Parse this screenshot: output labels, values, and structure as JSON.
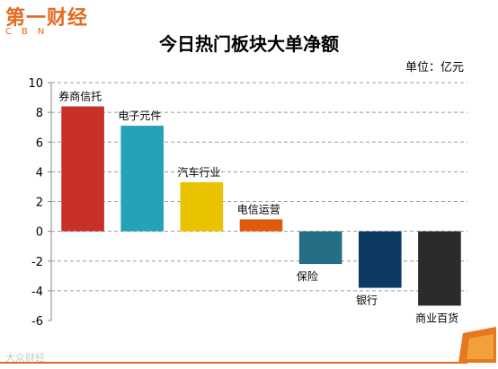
{
  "brand": {
    "logo_cn": "第一财经",
    "logo_en": "CBN",
    "watermark": "大众财经"
  },
  "colors": {
    "grid": "#9a9a9a",
    "axis": "#888888",
    "brand_orange": "#e36a1f"
  },
  "chart_data": {
    "type": "bar",
    "title": "今日热门板块大单净额",
    "unit_label": "单位：亿元",
    "ylim": [
      -6,
      10
    ],
    "y_ticks": [
      -6,
      -4,
      -2,
      0,
      2,
      4,
      6,
      8,
      10
    ],
    "grid": true,
    "categories": [
      "券商信托",
      "电子元件",
      "汽车行业",
      "电信运营",
      "保险",
      "银行",
      "商业百货"
    ],
    "values": [
      8.4,
      7.1,
      3.3,
      0.8,
      -2.2,
      -3.8,
      -5.0
    ],
    "bar_colors": [
      "#c8302a",
      "#26a2b7",
      "#e9c300",
      "#e05a0c",
      "#256f86",
      "#0c3a63",
      "#2b2b2b"
    ]
  }
}
